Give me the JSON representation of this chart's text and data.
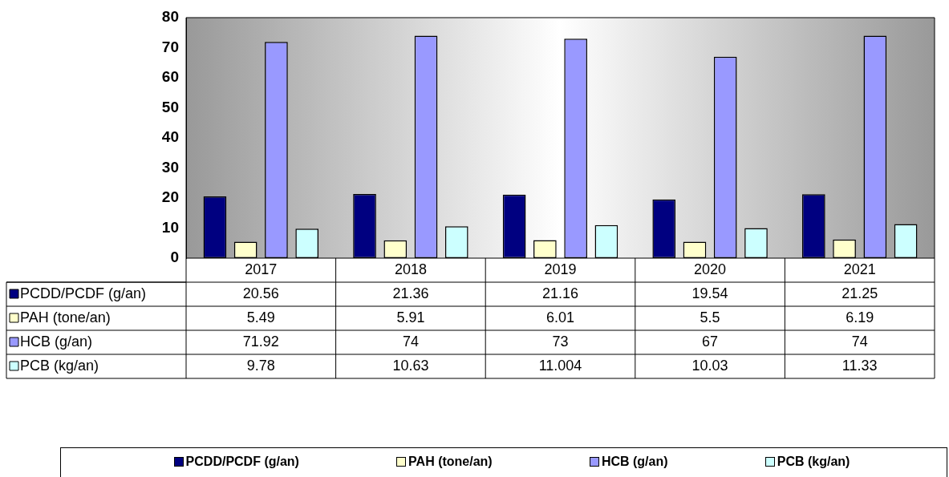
{
  "chart_data": {
    "type": "bar",
    "categories": [
      "2017",
      "2018",
      "2019",
      "2020",
      "2021"
    ],
    "series": [
      {
        "name": "PCDD/PCDF (g/an)",
        "color": "#000080",
        "values": [
          20.56,
          21.36,
          21.16,
          19.54,
          21.25
        ]
      },
      {
        "name": "PAH (tone/an)",
        "color": "#ffffcc",
        "values": [
          5.49,
          5.91,
          6.01,
          5.5,
          6.19
        ]
      },
      {
        "name": "HCB (g/an)",
        "color": "#9999ff",
        "values": [
          71.92,
          74,
          73,
          67,
          74
        ]
      },
      {
        "name": "PCB (kg/an)",
        "color": "#ccffff",
        "values": [
          9.78,
          10.63,
          11.004,
          10.03,
          11.33
        ]
      }
    ],
    "ylim": [
      0,
      80
    ],
    "yticks": [
      0,
      10,
      20,
      30,
      40,
      50,
      60,
      70,
      80
    ],
    "grid": false,
    "legend": "bottom",
    "data_labels": true
  }
}
